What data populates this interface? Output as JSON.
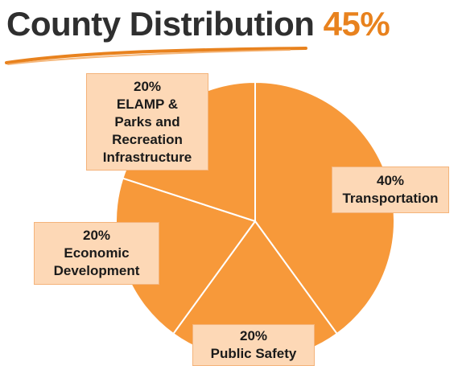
{
  "title": {
    "text": "County Distribution",
    "percent": "45%"
  },
  "colors": {
    "slice": "#f7993a",
    "slice_border": "#ffffff",
    "label_bg": "#fdd8b6",
    "title_accent": "#e8821e",
    "underline": "#e8821e"
  },
  "chart_data": {
    "type": "pie",
    "slices": [
      {
        "percent_label": "40%",
        "name_lines": [
          "Transportation"
        ],
        "value": 40
      },
      {
        "percent_label": "20%",
        "name_lines": [
          "Public Safety"
        ],
        "value": 20
      },
      {
        "percent_label": "20%",
        "name_lines": [
          "Economic",
          "Development"
        ],
        "value": 20
      },
      {
        "percent_label": "20%",
        "name_lines": [
          "ELAMP &",
          "Parks and",
          "Recreation",
          "Infrastructure"
        ],
        "value": 20
      }
    ]
  }
}
